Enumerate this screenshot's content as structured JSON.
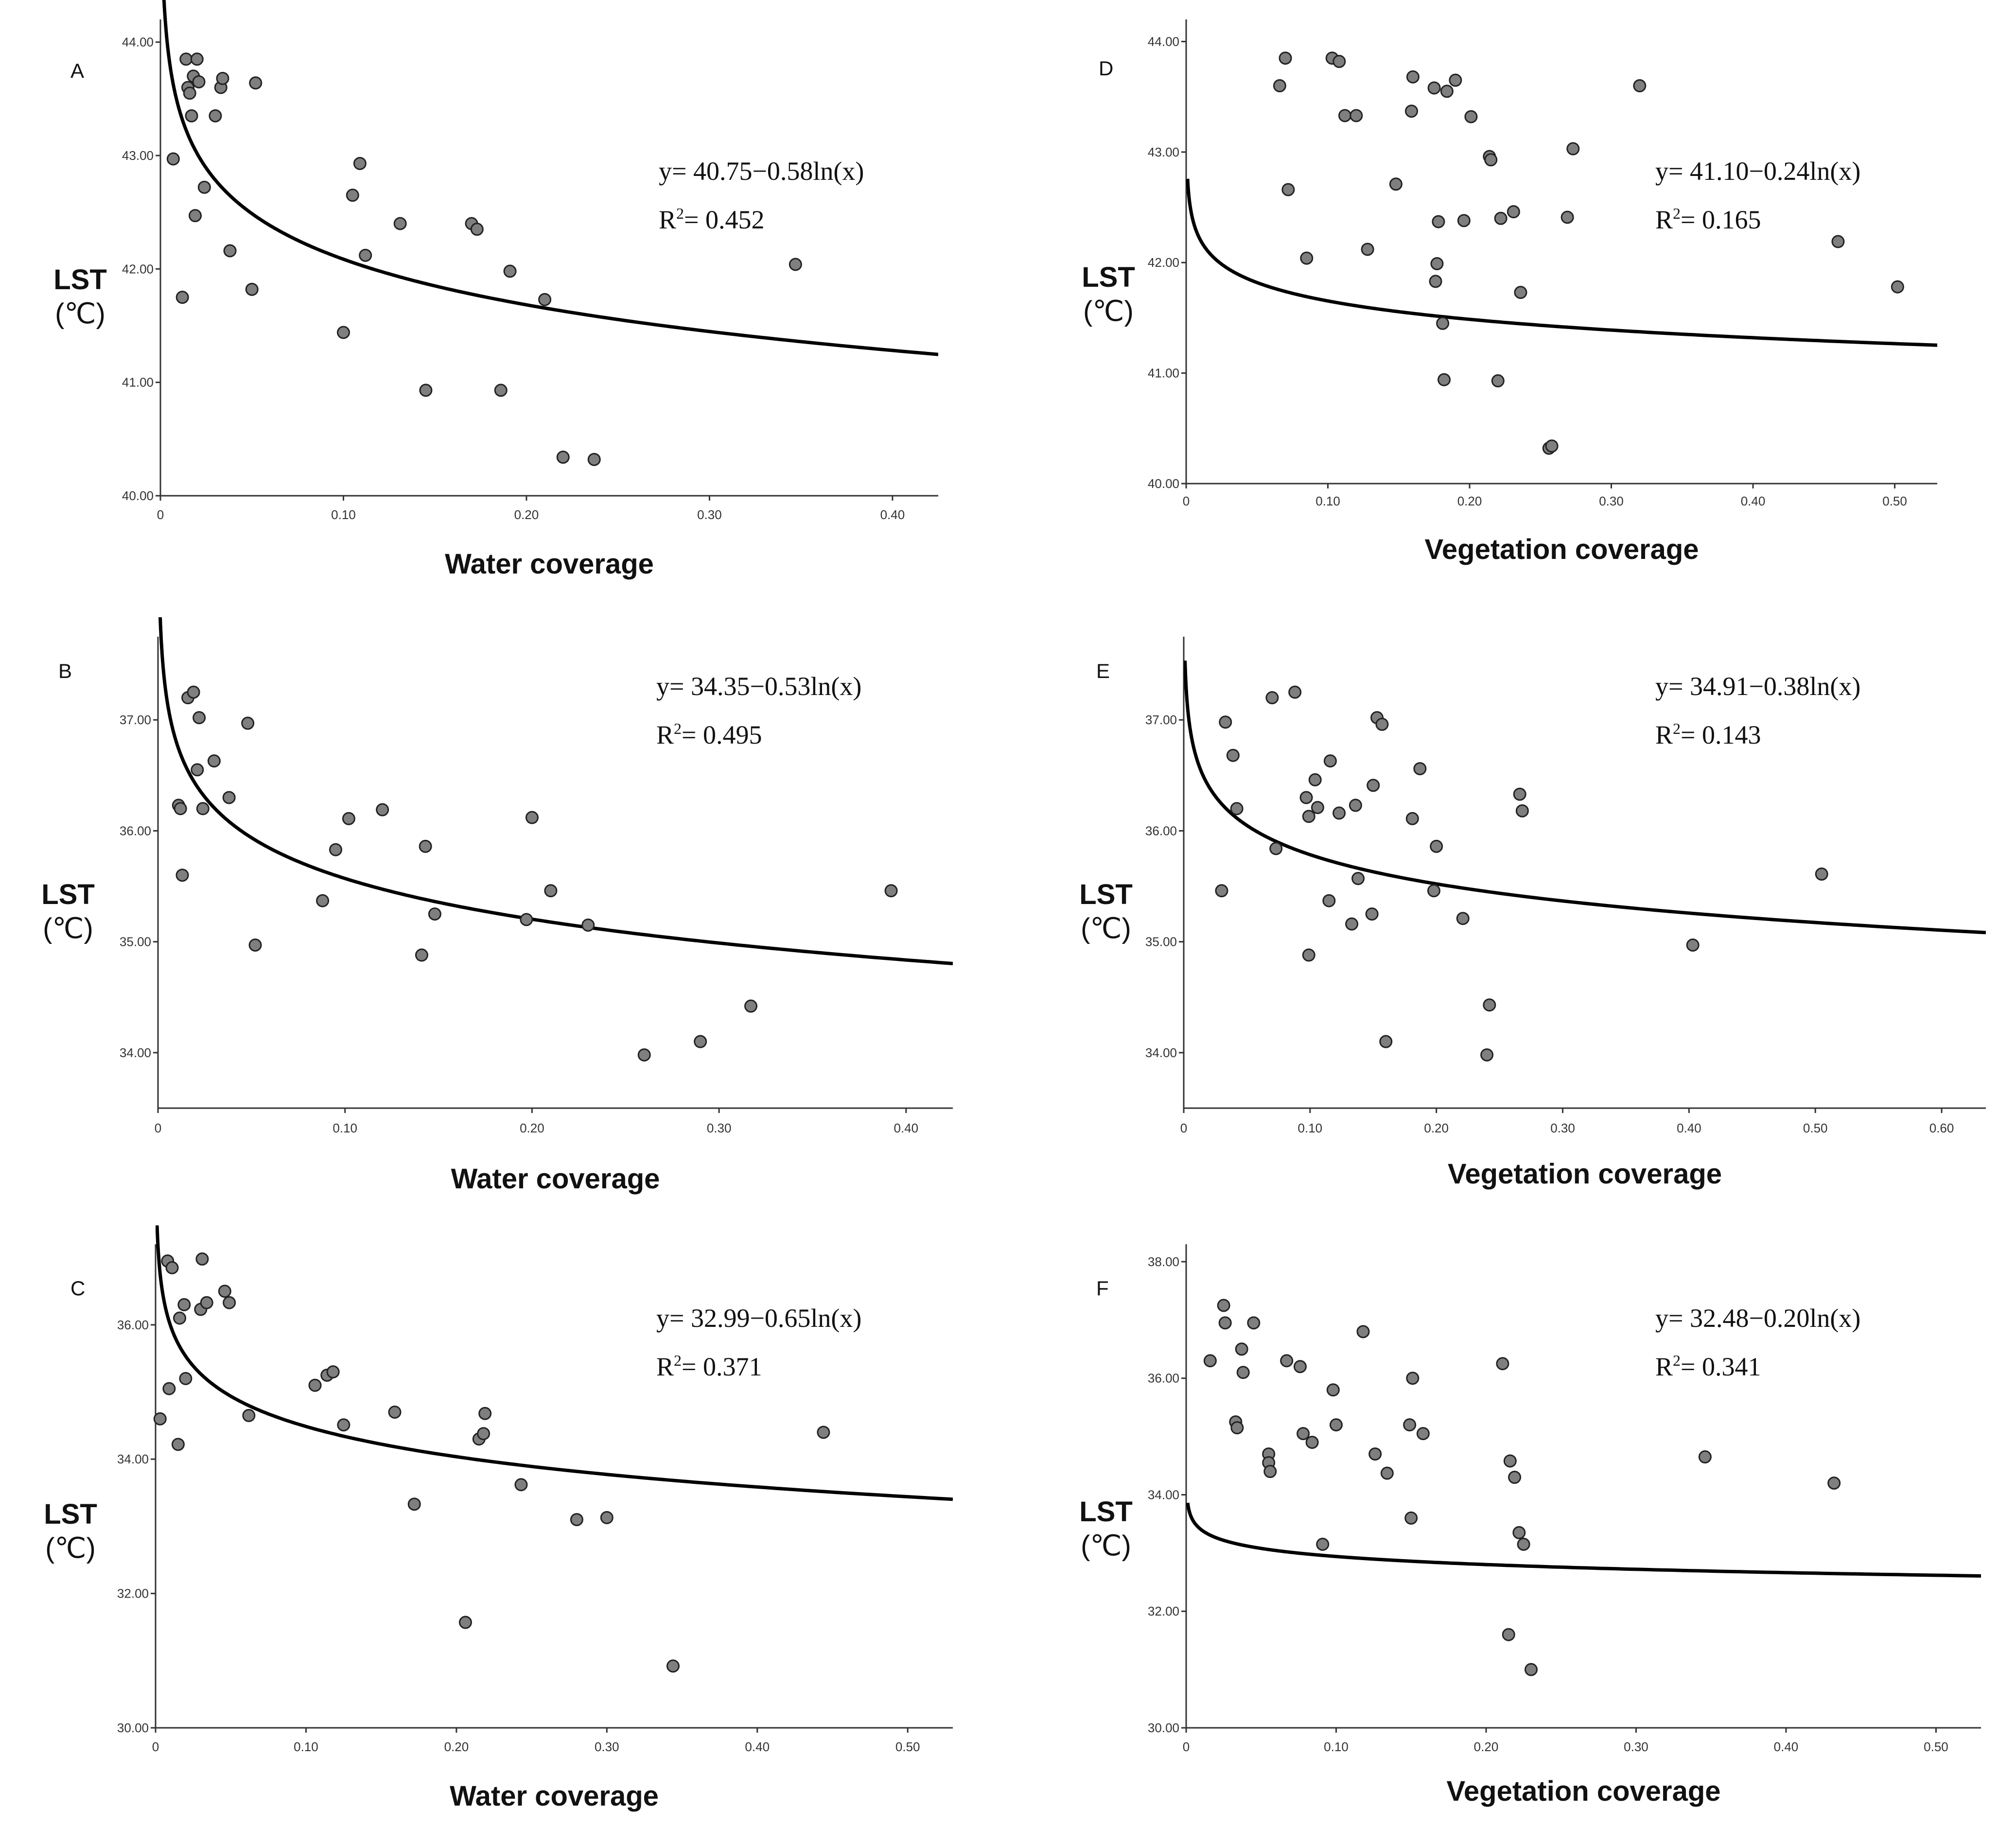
{
  "chart_data": [
    {
      "type": "scatter",
      "panel": "A",
      "xlabel": "Water coverage",
      "ylabel_line1": "LST",
      "ylabel_line2": "(℃)",
      "xlim": [
        0,
        0.425
      ],
      "ylim": [
        40,
        44.2
      ],
      "xticks": [
        0,
        0.1,
        0.2,
        0.3,
        0.4
      ],
      "xtick_labels": [
        "0",
        "0.10",
        "0.20",
        "0.30",
        "0.40"
      ],
      "yticks": [
        40,
        41,
        42,
        43,
        44
      ],
      "ytick_labels": [
        "40.00",
        "41.00",
        "42.00",
        "43.00",
        "44.00"
      ],
      "equation": "y= 40.75−0.58ln(x)",
      "r2_label": "R",
      "r2_sup": "2",
      "r2_value": "= 0.452",
      "fit": {
        "a": 40.75,
        "b": 0.58
      },
      "x": [
        0.007,
        0.014,
        0.015,
        0.016,
        0.017,
        0.018,
        0.019,
        0.02,
        0.021,
        0.012,
        0.024,
        0.03,
        0.033,
        0.034,
        0.038,
        0.05,
        0.052,
        0.1,
        0.105,
        0.109,
        0.112,
        0.131,
        0.17,
        0.173,
        0.145,
        0.186,
        0.191,
        0.21,
        0.22,
        0.237,
        0.347
      ],
      "y": [
        42.97,
        43.85,
        43.6,
        43.55,
        43.35,
        43.7,
        42.47,
        43.85,
        43.65,
        41.75,
        42.72,
        43.35,
        43.6,
        43.68,
        42.16,
        41.82,
        43.64,
        41.44,
        42.65,
        42.93,
        42.12,
        42.4,
        42.4,
        42.35,
        40.93,
        40.93,
        41.98,
        41.73,
        40.34,
        40.32,
        42.04
      ]
    },
    {
      "type": "scatter",
      "panel": "D",
      "xlabel": "Vegetation coverage",
      "ylabel_line1": "LST",
      "ylabel_line2": "(℃)",
      "xlim": [
        0,
        0.53
      ],
      "ylim": [
        40,
        44.2
      ],
      "xticks": [
        0,
        0.1,
        0.2,
        0.3,
        0.4,
        0.5
      ],
      "xtick_labels": [
        "0",
        "0.10",
        "0.20",
        "0.30",
        "0.40",
        "0.50"
      ],
      "yticks": [
        40,
        41,
        42,
        43,
        44
      ],
      "ytick_labels": [
        "40.00",
        "41.00",
        "42.00",
        "43.00",
        "44.00"
      ],
      "equation": "y= 41.10−0.24ln(x)",
      "r2_label": "R",
      "r2_sup": "2",
      "r2_value": "= 0.165",
      "fit": {
        "a": 41.1,
        "b": 0.24
      },
      "x": [
        0.066,
        0.07,
        0.072,
        0.085,
        0.103,
        0.108,
        0.112,
        0.12,
        0.128,
        0.148,
        0.159,
        0.16,
        0.175,
        0.176,
        0.177,
        0.178,
        0.181,
        0.182,
        0.184,
        0.19,
        0.196,
        0.201,
        0.214,
        0.215,
        0.22,
        0.222,
        0.231,
        0.236,
        0.256,
        0.258,
        0.269,
        0.273,
        0.32,
        0.46,
        0.502
      ],
      "y": [
        43.6,
        43.85,
        42.66,
        42.04,
        43.85,
        43.82,
        43.33,
        43.33,
        42.12,
        42.71,
        43.37,
        43.68,
        43.58,
        41.83,
        41.99,
        42.37,
        41.45,
        40.94,
        43.55,
        43.65,
        42.38,
        43.32,
        42.96,
        42.93,
        40.93,
        42.4,
        42.46,
        41.73,
        40.32,
        40.34,
        42.41,
        43.03,
        43.6,
        42.19,
        41.78
      ]
    },
    {
      "type": "scatter",
      "panel": "B",
      "xlabel": "Water coverage",
      "ylabel_line1": "LST",
      "ylabel_line2": "(℃)",
      "xlim": [
        0,
        0.425
      ],
      "ylim": [
        33.5,
        37.75
      ],
      "xticks": [
        0,
        0.1,
        0.2,
        0.3,
        0.4
      ],
      "xtick_labels": [
        "0",
        "0.10",
        "0.20",
        "0.30",
        "0.40"
      ],
      "yticks": [
        34,
        35,
        36,
        37
      ],
      "ytick_labels": [
        "34.00",
        "35.00",
        "36.00",
        "37.00"
      ],
      "equation": "y= 34.35−0.53ln(x)",
      "r2_label": "R",
      "r2_sup": "2",
      "r2_value": "= 0.495",
      "fit": {
        "a": 34.35,
        "b": 0.53
      },
      "x": [
        0.011,
        0.012,
        0.013,
        0.016,
        0.019,
        0.021,
        0.022,
        0.024,
        0.03,
        0.038,
        0.048,
        0.052,
        0.088,
        0.095,
        0.102,
        0.12,
        0.143,
        0.148,
        0.141,
        0.197,
        0.2,
        0.21,
        0.23,
        0.26,
        0.29,
        0.317,
        0.392
      ],
      "y": [
        36.23,
        36.2,
        35.6,
        37.2,
        37.25,
        36.55,
        37.02,
        36.2,
        36.63,
        36.3,
        36.97,
        34.97,
        35.37,
        35.83,
        36.11,
        36.19,
        35.86,
        35.25,
        34.88,
        35.2,
        36.12,
        35.46,
        35.15,
        33.98,
        34.1,
        34.42,
        35.46
      ]
    },
    {
      "type": "scatter",
      "panel": "E",
      "xlabel": "Vegetation coverage",
      "ylabel_line1": "LST",
      "ylabel_line2": "(℃)",
      "xlim": [
        0,
        0.635
      ],
      "ylim": [
        33.5,
        37.75
      ],
      "xticks": [
        0,
        0.1,
        0.2,
        0.3,
        0.4,
        0.5,
        0.6
      ],
      "xtick_labels": [
        "0",
        "0.10",
        "0.20",
        "0.30",
        "0.40",
        "0.50",
        "0.60"
      ],
      "yticks": [
        34,
        35,
        36,
        37
      ],
      "ytick_labels": [
        "34.00",
        "35.00",
        "36.00",
        "37.00"
      ],
      "equation": "y= 34.91−0.38ln(x)",
      "r2_label": "R",
      "r2_sup": "2",
      "r2_value": "= 0.143",
      "fit": {
        "a": 34.91,
        "b": 0.38
      },
      "x": [
        0.03,
        0.033,
        0.039,
        0.042,
        0.07,
        0.073,
        0.088,
        0.097,
        0.099,
        0.099,
        0.104,
        0.106,
        0.115,
        0.116,
        0.123,
        0.133,
        0.136,
        0.138,
        0.149,
        0.15,
        0.153,
        0.157,
        0.16,
        0.181,
        0.187,
        0.198,
        0.2,
        0.221,
        0.24,
        0.242,
        0.266,
        0.268,
        0.403,
        0.505
      ],
      "y": [
        35.46,
        36.98,
        36.68,
        36.2,
        37.2,
        35.84,
        37.25,
        36.3,
        34.88,
        36.13,
        36.46,
        36.21,
        35.37,
        36.63,
        36.16,
        35.16,
        36.23,
        35.57,
        35.25,
        36.41,
        37.02,
        36.96,
        34.1,
        36.11,
        36.56,
        35.46,
        35.86,
        35.21,
        33.98,
        34.43,
        36.33,
        36.18,
        34.97,
        35.61
      ]
    },
    {
      "type": "scatter",
      "panel": "C",
      "xlabel": "Water coverage",
      "ylabel_line1": "LST",
      "ylabel_line2": "(℃)",
      "xlim": [
        0,
        0.53
      ],
      "ylim": [
        30,
        37.2
      ],
      "xticks": [
        0,
        0.1,
        0.2,
        0.3,
        0.4,
        0.5
      ],
      "xtick_labels": [
        "0",
        "0.10",
        "0.20",
        "0.30",
        "0.40",
        "0.50"
      ],
      "yticks": [
        30,
        32,
        34,
        36
      ],
      "ytick_labels": [
        "30.00",
        "32.00",
        "34.00",
        "36.00"
      ],
      "equation": "y= 32.99−0.65ln(x)",
      "r2_label": "R",
      "r2_sup": "2",
      "r2_value": "= 0.371",
      "fit": {
        "a": 32.99,
        "b": 0.65
      },
      "x": [
        0.003,
        0.008,
        0.009,
        0.011,
        0.015,
        0.016,
        0.019,
        0.02,
        0.03,
        0.031,
        0.034,
        0.046,
        0.049,
        0.062,
        0.106,
        0.114,
        0.118,
        0.125,
        0.159,
        0.172,
        0.206,
        0.215,
        0.218,
        0.219,
        0.243,
        0.28,
        0.3,
        0.344,
        0.444
      ],
      "y": [
        34.6,
        36.95,
        35.05,
        36.85,
        34.22,
        36.1,
        36.3,
        35.2,
        36.23,
        36.98,
        36.33,
        36.5,
        36.33,
        34.65,
        35.1,
        35.25,
        35.3,
        34.51,
        34.7,
        33.33,
        31.57,
        34.3,
        34.38,
        34.68,
        33.62,
        33.1,
        33.13,
        30.92,
        34.4
      ]
    },
    {
      "type": "scatter",
      "panel": "F",
      "xlabel": "Vegetation coverage",
      "ylabel_line1": "LST",
      "ylabel_line2": "(℃)",
      "xlim": [
        0,
        0.53
      ],
      "ylim": [
        30,
        38.3
      ],
      "xticks": [
        0,
        0.1,
        0.2,
        0.3,
        0.4,
        0.5
      ],
      "xtick_labels": [
        "0",
        "0.10",
        "0.20",
        "0.30",
        "0.40",
        "0.50"
      ],
      "yticks": [
        30,
        32,
        34,
        36,
        38
      ],
      "ytick_labels": [
        "30.00",
        "32.00",
        "34.00",
        "36.00",
        "38.00"
      ],
      "equation": "y= 32.48−0.20ln(x)",
      "r2_label": "R",
      "r2_sup": "2",
      "r2_value": "= 0.341",
      "fit": {
        "a": 32.48,
        "b": 0.2
      },
      "x": [
        0.016,
        0.025,
        0.026,
        0.033,
        0.034,
        0.037,
        0.038,
        0.045,
        0.055,
        0.055,
        0.056,
        0.067,
        0.076,
        0.078,
        0.084,
        0.091,
        0.098,
        0.1,
        0.118,
        0.126,
        0.134,
        0.149,
        0.15,
        0.151,
        0.158,
        0.211,
        0.215,
        0.216,
        0.219,
        0.222,
        0.225,
        0.23,
        0.346,
        0.432
      ],
      "y": [
        36.3,
        37.25,
        36.95,
        35.25,
        35.15,
        36.5,
        36.1,
        36.95,
        34.7,
        34.55,
        34.4,
        36.3,
        36.2,
        35.05,
        34.9,
        33.15,
        35.8,
        35.2,
        36.8,
        34.7,
        34.37,
        35.2,
        33.6,
        36,
        35.05,
        36.25,
        31.6,
        34.58,
        34.3,
        33.35,
        33.15,
        31,
        34.65,
        34.2
      ]
    }
  ]
}
